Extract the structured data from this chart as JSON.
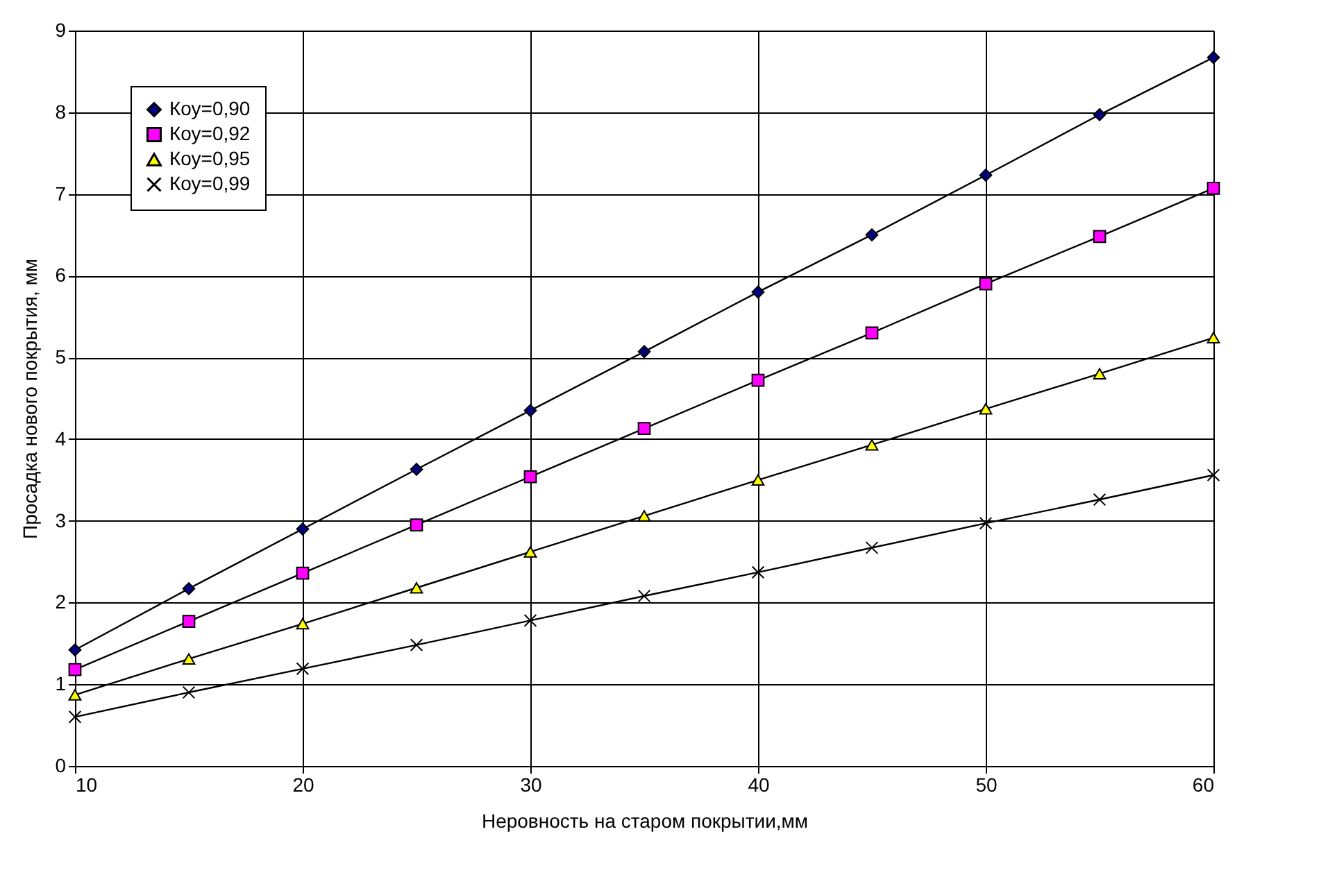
{
  "chart_data": {
    "type": "line",
    "xlabel": "Неровность на старом покрытии,мм",
    "ylabel": "Просадка нового покрытия, мм",
    "x": [
      10,
      15,
      20,
      25,
      30,
      35,
      40,
      45,
      50,
      55,
      60
    ],
    "xlim": [
      10,
      60
    ],
    "xticks": [
      10,
      20,
      30,
      40,
      50,
      60
    ],
    "ylim": [
      0,
      9
    ],
    "yticks": [
      0,
      1,
      2,
      3,
      4,
      5,
      6,
      7,
      8,
      9
    ],
    "grid": true,
    "legend": "top left",
    "series": [
      {
        "name": "Коу=0,90",
        "color": "#000080",
        "marker": "diamond",
        "values": [
          1.42,
          2.17,
          2.9,
          3.63,
          4.35,
          5.07,
          5.8,
          6.5,
          7.23,
          7.97,
          8.67
        ]
      },
      {
        "name": "Коу=0,92",
        "color": "#ff00ff",
        "marker": "square",
        "values": [
          1.18,
          1.77,
          2.36,
          2.95,
          3.54,
          4.13,
          4.72,
          5.3,
          5.9,
          6.48,
          7.07
        ]
      },
      {
        "name": "Коу=0,95",
        "color": "#ffff00",
        "marker": "triangle",
        "values": [
          0.87,
          1.31,
          1.74,
          2.18,
          2.62,
          3.06,
          3.5,
          3.93,
          4.37,
          4.8,
          5.24
        ]
      },
      {
        "name": "Коу=0,99",
        "color": "#000000",
        "marker": "cross",
        "values": [
          0.6,
          0.9,
          1.19,
          1.48,
          1.78,
          2.08,
          2.37,
          2.67,
          2.97,
          3.26,
          3.56
        ]
      }
    ]
  }
}
